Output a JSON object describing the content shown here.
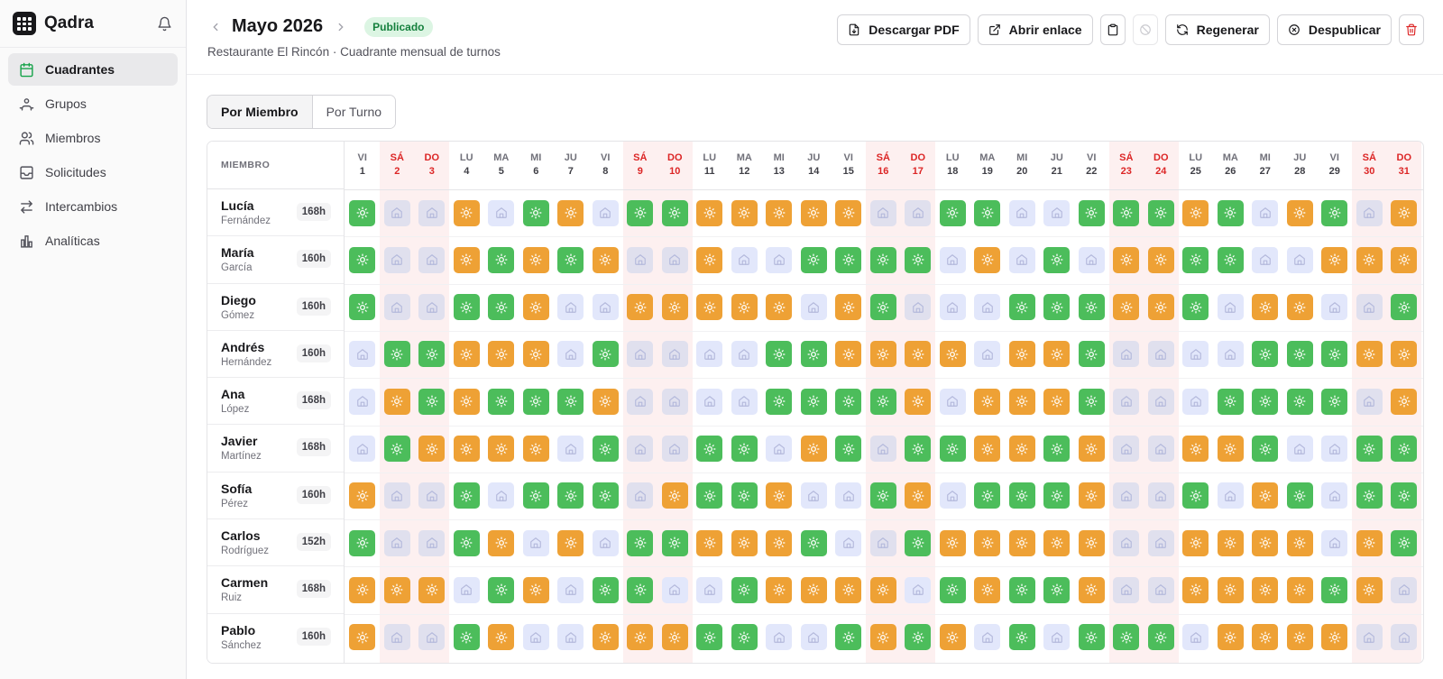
{
  "app": {
    "name": "Qadra"
  },
  "sidebar": {
    "items": [
      {
        "label": "Cuadrantes",
        "icon": "calendar-icon",
        "active": true
      },
      {
        "label": "Grupos",
        "icon": "groups-icon",
        "active": false
      },
      {
        "label": "Miembros",
        "icon": "members-icon",
        "active": false
      },
      {
        "label": "Solicitudes",
        "icon": "inbox-icon",
        "active": false
      },
      {
        "label": "Intercambios",
        "icon": "swap-icon",
        "active": false
      },
      {
        "label": "Analíticas",
        "icon": "chart-icon",
        "active": false
      }
    ]
  },
  "header": {
    "title": "Mayo 2026",
    "status": "Publicado",
    "subtitle": "Restaurante El Rincón · Cuadrante mensual de turnos",
    "actions": {
      "download": "Descargar PDF",
      "open_link": "Abrir enlace",
      "regenerate": "Regenerar",
      "unpublish": "Despublicar"
    }
  },
  "tabs": [
    {
      "label": "Por Miembro",
      "active": true
    },
    {
      "label": "Por Turno",
      "active": false
    }
  ],
  "grid": {
    "member_header": "MIEMBRO",
    "days": [
      {
        "d": "VI",
        "n": "1"
      },
      {
        "d": "SÁ",
        "n": "2"
      },
      {
        "d": "DO",
        "n": "3"
      },
      {
        "d": "LU",
        "n": "4"
      },
      {
        "d": "MA",
        "n": "5"
      },
      {
        "d": "MI",
        "n": "6"
      },
      {
        "d": "JU",
        "n": "7"
      },
      {
        "d": "VI",
        "n": "8"
      },
      {
        "d": "SÁ",
        "n": "9"
      },
      {
        "d": "DO",
        "n": "10"
      },
      {
        "d": "LU",
        "n": "11"
      },
      {
        "d": "MA",
        "n": "12"
      },
      {
        "d": "MI",
        "n": "13"
      },
      {
        "d": "JU",
        "n": "14"
      },
      {
        "d": "VI",
        "n": "15"
      },
      {
        "d": "SÁ",
        "n": "16"
      },
      {
        "d": "DO",
        "n": "17"
      },
      {
        "d": "LU",
        "n": "18"
      },
      {
        "d": "MA",
        "n": "19"
      },
      {
        "d": "MI",
        "n": "20"
      },
      {
        "d": "JU",
        "n": "21"
      },
      {
        "d": "VI",
        "n": "22"
      },
      {
        "d": "SÁ",
        "n": "23"
      },
      {
        "d": "DO",
        "n": "24"
      },
      {
        "d": "LU",
        "n": "25"
      },
      {
        "d": "MA",
        "n": "26"
      },
      {
        "d": "MI",
        "n": "27"
      },
      {
        "d": "JU",
        "n": "28"
      },
      {
        "d": "VI",
        "n": "29"
      },
      {
        "d": "SÁ",
        "n": "30"
      },
      {
        "d": "DO",
        "n": "31"
      }
    ],
    "weekend_indexes": [
      1,
      2,
      8,
      9,
      15,
      16,
      22,
      23,
      29,
      30
    ],
    "legend_codes": {
      "G": "#4cbd5b",
      "O": "#eea135",
      "F": "#e2e7fb",
      "W": "#e0e0ee"
    },
    "members": [
      {
        "first": "Lucía",
        "last": "Fernández",
        "hours": "168h",
        "shifts": "GWWOFGOFGGOOOOOWWGGFFGGGOGFOGWO"
      },
      {
        "first": "María",
        "last": "García",
        "hours": "160h",
        "shifts": "GWWOGOGOWWOFFGGGGFOFGFOOGGFFOOO"
      },
      {
        "first": "Diego",
        "last": "Gómez",
        "hours": "160h",
        "shifts": "GWWGGOFFOOOOOFOGWFFGGGOOGFOOFWG"
      },
      {
        "first": "Andrés",
        "last": "Hernández",
        "hours": "160h",
        "shifts": "FGGOOOFGWWFFGGOOOOFOOGWWFFGGGOO"
      },
      {
        "first": "Ana",
        "last": "López",
        "hours": "168h",
        "shifts": "FOGOGGGOWWFFGGGGOFOOOGWWFGGGGWO"
      },
      {
        "first": "Javier",
        "last": "Martínez",
        "hours": "168h",
        "shifts": "FGOOOOFGWWGGFOGWGGOOGOWWOOGFFGG"
      },
      {
        "first": "Sofía",
        "last": "Pérez",
        "hours": "160h",
        "shifts": "OWWGFGGGWOGGOFFGOFGGGOWWGFOGFGG"
      },
      {
        "first": "Carlos",
        "last": "Rodríguez",
        "hours": "152h",
        "shifts": "GWWGOFOFGGOOOGFWGOOOOOWWOOOOFOG"
      },
      {
        "first": "Carmen",
        "last": "Ruiz",
        "hours": "168h",
        "shifts": "OOOFGOFGGFFGOOOOFGOGGOWWOOOOGOW"
      },
      {
        "first": "Pablo",
        "last": "Sánchez",
        "hours": "160h",
        "shifts": "OWWGOFFOOOGGFFGOGOFGFGGGFOOOOWW"
      }
    ]
  }
}
